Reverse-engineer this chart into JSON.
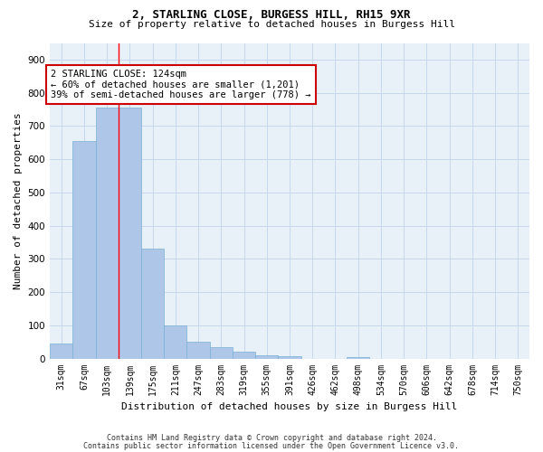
{
  "title": "2, STARLING CLOSE, BURGESS HILL, RH15 9XR",
  "subtitle": "Size of property relative to detached houses in Burgess Hill",
  "xlabel": "Distribution of detached houses by size in Burgess Hill",
  "ylabel": "Number of detached properties",
  "footnote1": "Contains HM Land Registry data © Crown copyright and database right 2024.",
  "footnote2": "Contains public sector information licensed under the Open Government Licence v3.0.",
  "bin_labels": [
    "31sqm",
    "67sqm",
    "103sqm",
    "139sqm",
    "175sqm",
    "211sqm",
    "247sqm",
    "283sqm",
    "319sqm",
    "355sqm",
    "391sqm",
    "426sqm",
    "462sqm",
    "498sqm",
    "534sqm",
    "570sqm",
    "606sqm",
    "642sqm",
    "678sqm",
    "714sqm",
    "750sqm"
  ],
  "bar_heights": [
    45,
    655,
    755,
    755,
    330,
    100,
    50,
    35,
    20,
    10,
    8,
    0,
    0,
    5,
    0,
    0,
    0,
    0,
    0,
    0,
    0
  ],
  "bar_color": "#aec6e8",
  "bar_edge_color": "#7aafd4",
  "grid_color": "#c8d8ec",
  "background_color": "#e8f0f8",
  "property_line_x": 2.5,
  "annotation_text": "2 STARLING CLOSE: 124sqm\n← 60% of detached houses are smaller (1,201)\n39% of semi-detached houses are larger (778) →",
  "annotation_box_facecolor": "#ffffff",
  "annotation_border_color": "#cc0000",
  "ylim": [
    0,
    950
  ],
  "yticks": [
    0,
    100,
    200,
    300,
    400,
    500,
    600,
    700,
    800,
    900
  ],
  "title_fontsize": 9,
  "subtitle_fontsize": 8,
  "ylabel_fontsize": 8,
  "xlabel_fontsize": 8,
  "tick_fontsize": 7,
  "annot_fontsize": 7.5,
  "footnote_fontsize": 6
}
